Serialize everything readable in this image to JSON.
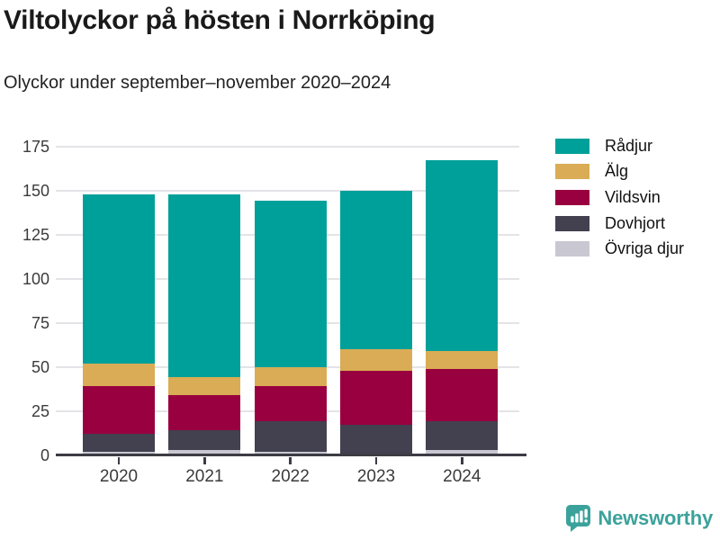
{
  "header": {
    "title": "Viltolyckor på hösten i Norrköping",
    "subtitle": "Olyckor under september–november 2020–2024"
  },
  "chart_data": {
    "type": "bar",
    "stacked": true,
    "title": "Viltolyckor på hösten i Norrköping",
    "subtitle": "Olyckor under september–november 2020–2024",
    "categories": [
      "2020",
      "2021",
      "2022",
      "2023",
      "2024"
    ],
    "series": [
      {
        "name": "Rådjur",
        "color": "#00A09A",
        "values": [
          96,
          104,
          94,
          90,
          108
        ]
      },
      {
        "name": "Älg",
        "color": "#D9AC55",
        "values": [
          13,
          10,
          11,
          12,
          10
        ]
      },
      {
        "name": "Vildsvin",
        "color": "#99003F",
        "values": [
          27,
          20,
          20,
          31,
          30
        ]
      },
      {
        "name": "Dovhjort",
        "color": "#434050",
        "values": [
          10,
          11,
          17,
          16,
          16
        ]
      },
      {
        "name": "Övriga djur",
        "color": "#C8C7D2",
        "values": [
          2,
          3,
          2,
          1,
          3
        ]
      }
    ],
    "totals": [
      148,
      148,
      144,
      150,
      167
    ],
    "xlabel": "",
    "ylabel": "",
    "yticks": [
      0,
      25,
      50,
      75,
      100,
      125,
      150,
      175
    ],
    "ylim": [
      0,
      185
    ],
    "grid": "horizontal",
    "legend_position": "top-right",
    "axis_color": "#3C3C44",
    "grid_color": "#E4E4E8",
    "tick_label_color": "#3B3B3B"
  },
  "footer": {
    "brand": "Newsworthy",
    "brand_color": "#3BA29B"
  }
}
